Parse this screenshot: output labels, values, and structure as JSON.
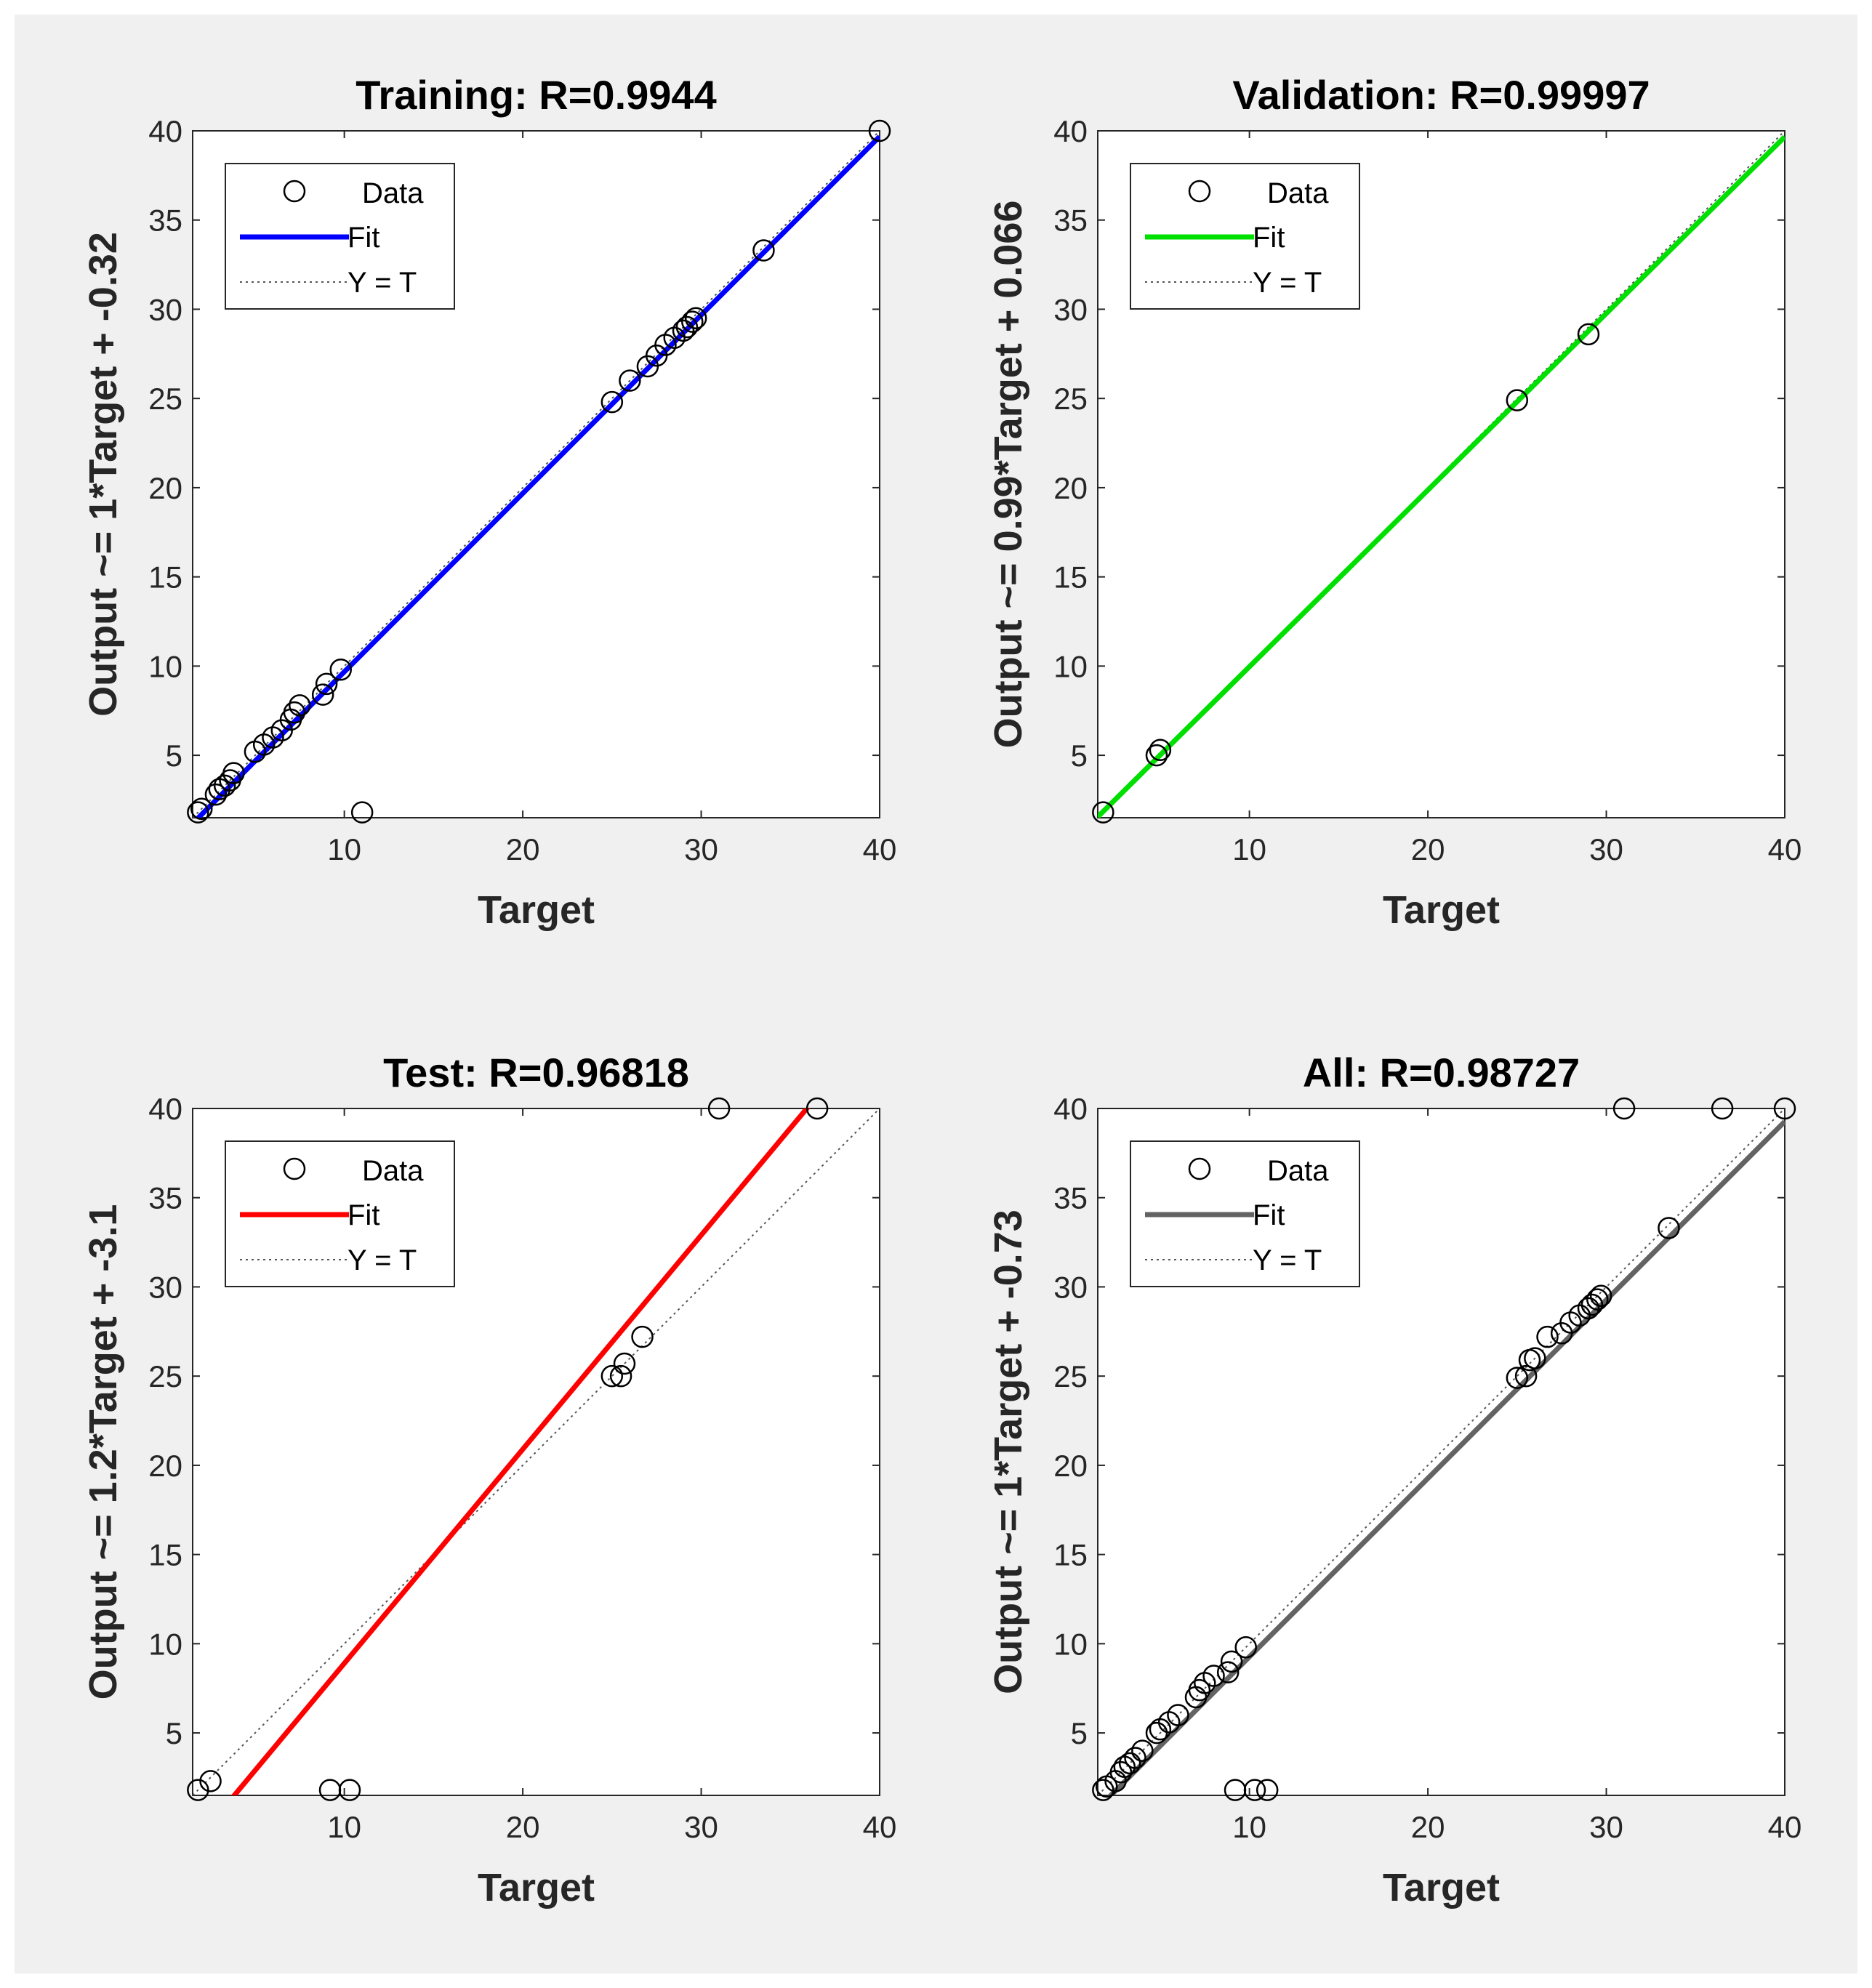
{
  "figure": {
    "background": "#f0f0f0"
  },
  "chart_data": [
    {
      "type": "scatter",
      "title": "Training: R=0.9944",
      "xlabel": "Target",
      "ylabel": "Output ~= 1*Target + -0.32",
      "xlim": [
        1.5,
        40
      ],
      "ylim": [
        1.5,
        40
      ],
      "xticks": [
        "10",
        "20",
        "30",
        "40"
      ],
      "yticks": [
        "5",
        "10",
        "15",
        "20",
        "25",
        "30",
        "35",
        "40"
      ],
      "fit_color": "#0000ff",
      "fit": {
        "slope": 1.0,
        "intercept": -0.32
      },
      "legend": {
        "position": "top-left",
        "entries": [
          "Data",
          "Fit",
          "Y = T"
        ]
      },
      "series": [
        {
          "name": "Data",
          "x": [
            1.8,
            2.0,
            2.8,
            3.0,
            3.3,
            3.6,
            3.8,
            5.0,
            5.5,
            6.0,
            6.5,
            7.0,
            7.2,
            7.5,
            8.8,
            9.0,
            9.8,
            11.0,
            25.0,
            26.0,
            27.0,
            27.5,
            28.0,
            28.5,
            29.0,
            29.2,
            29.5,
            29.7,
            33.5,
            40.0
          ],
          "y": [
            1.8,
            2.0,
            2.8,
            3.1,
            3.3,
            3.6,
            4.0,
            5.2,
            5.6,
            6.0,
            6.4,
            7.0,
            7.4,
            7.8,
            8.4,
            9.0,
            9.8,
            1.8,
            24.8,
            26.0,
            26.8,
            27.4,
            28.0,
            28.4,
            28.8,
            29.0,
            29.3,
            29.5,
            33.3,
            40.0
          ]
        }
      ]
    },
    {
      "type": "scatter",
      "title": "Validation: R=0.99997",
      "xlabel": "Target",
      "ylabel": "Output ~= 0.99*Target + 0.066",
      "xlim": [
        1.5,
        40
      ],
      "ylim": [
        1.5,
        40
      ],
      "xticks": [
        "10",
        "20",
        "30",
        "40"
      ],
      "yticks": [
        "5",
        "10",
        "15",
        "20",
        "25",
        "30",
        "35",
        "40"
      ],
      "fit_color": "#00e000",
      "fit": {
        "slope": 0.99,
        "intercept": 0.066
      },
      "legend": {
        "position": "top-left",
        "entries": [
          "Data",
          "Fit",
          "Y = T"
        ]
      },
      "series": [
        {
          "name": "Data",
          "x": [
            1.8,
            4.8,
            5.0,
            25.0,
            29.0
          ],
          "y": [
            1.8,
            5.0,
            5.3,
            24.9,
            28.6
          ]
        }
      ]
    },
    {
      "type": "scatter",
      "title": "Test: R=0.96818",
      "xlabel": "Target",
      "ylabel": "Output ~= 1.2*Target + -3.1",
      "xlim": [
        1.5,
        40
      ],
      "ylim": [
        1.5,
        40
      ],
      "xticks": [
        "10",
        "20",
        "30",
        "40"
      ],
      "yticks": [
        "5",
        "10",
        "15",
        "20",
        "25",
        "30",
        "35",
        "40"
      ],
      "fit_color": "#ff0000",
      "fit": {
        "slope": 1.2,
        "intercept": -3.1
      },
      "legend": {
        "position": "top-left",
        "entries": [
          "Data",
          "Fit",
          "Y = T"
        ]
      },
      "series": [
        {
          "name": "Data",
          "x": [
            1.8,
            2.5,
            9.2,
            10.3,
            25.0,
            25.5,
            25.7,
            26.7,
            31.0,
            36.5
          ],
          "y": [
            1.8,
            2.3,
            1.8,
            1.8,
            25.0,
            25.0,
            25.7,
            27.2,
            40.0,
            40.0
          ]
        }
      ]
    },
    {
      "type": "scatter",
      "title": "All: R=0.98727",
      "xlabel": "Target",
      "ylabel": "Output ~= 1*Target + -0.73",
      "xlim": [
        1.5,
        40
      ],
      "ylim": [
        1.5,
        40
      ],
      "xticks": [
        "10",
        "20",
        "30",
        "40"
      ],
      "yticks": [
        "5",
        "10",
        "15",
        "20",
        "25",
        "30",
        "35",
        "40"
      ],
      "fit_color": "#636363",
      "fit": {
        "slope": 1.0,
        "intercept": -0.73
      },
      "legend": {
        "position": "top-left",
        "entries": [
          "Data",
          "Fit",
          "Y = T"
        ]
      },
      "series": [
        {
          "name": "Data",
          "x": [
            1.8,
            2.0,
            2.5,
            2.8,
            3.0,
            3.3,
            3.6,
            4.0,
            4.8,
            5.0,
            5.5,
            6.0,
            7.0,
            7.2,
            7.5,
            8.0,
            8.8,
            9.0,
            9.2,
            9.8,
            10.3,
            11.0,
            25.0,
            25.5,
            25.7,
            26.0,
            26.7,
            27.5,
            28.0,
            28.5,
            29.0,
            29.2,
            29.5,
            29.7,
            31.0,
            33.5,
            36.5,
            40.0
          ],
          "y": [
            1.8,
            2.0,
            2.3,
            2.8,
            3.1,
            3.3,
            3.6,
            4.0,
            5.0,
            5.2,
            5.6,
            6.0,
            7.0,
            7.4,
            7.8,
            8.2,
            8.4,
            9.0,
            1.8,
            9.8,
            1.8,
            1.8,
            24.9,
            25.0,
            25.9,
            26.0,
            27.2,
            27.4,
            28.0,
            28.4,
            28.8,
            29.0,
            29.3,
            29.5,
            40.0,
            33.3,
            40.0,
            40.0
          ]
        }
      ]
    }
  ]
}
